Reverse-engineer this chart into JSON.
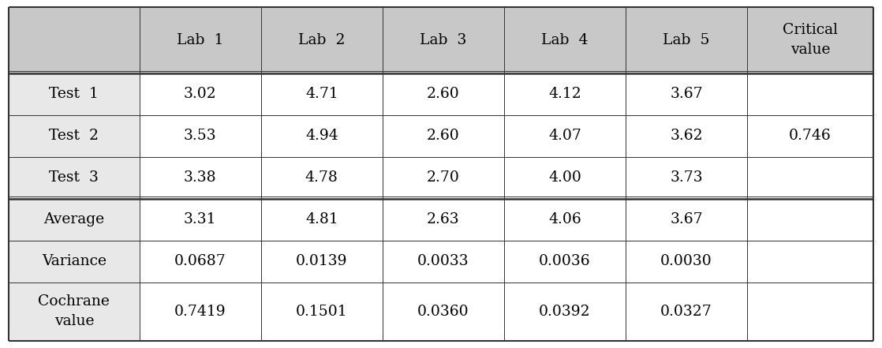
{
  "col_headers": [
    "",
    "Lab  1",
    "Lab  2",
    "Lab  3",
    "Lab  4",
    "Lab  5",
    "Critical\nvalue"
  ],
  "rows": [
    [
      "Test  1",
      "3.02",
      "4.71",
      "2.60",
      "4.12",
      "3.67",
      ""
    ],
    [
      "Test  2",
      "3.53",
      "4.94",
      "2.60",
      "4.07",
      "3.62",
      "0.746"
    ],
    [
      "Test  3",
      "3.38",
      "4.78",
      "2.70",
      "4.00",
      "3.73",
      ""
    ],
    [
      "Average",
      "3.31",
      "4.81",
      "2.63",
      "4.06",
      "3.67",
      ""
    ],
    [
      "Variance",
      "0.0687",
      "0.0139",
      "0.0033",
      "0.0036",
      "0.0030",
      ""
    ],
    [
      "Cochrane\nvalue",
      "0.7419",
      "0.1501",
      "0.0360",
      "0.0392",
      "0.0327",
      ""
    ]
  ],
  "header_bg": "#c8c8c8",
  "row_label_bg": "#e8e8e8",
  "white": "#ffffff",
  "figure_bg": "#ffffff",
  "border_color": "#333333",
  "text_color": "#000000",
  "font_size": 13.5,
  "figsize": [
    11.18,
    4.41
  ],
  "dpi": 100,
  "col_widths_raw": [
    1.45,
    1.35,
    1.35,
    1.35,
    1.35,
    1.35,
    1.4
  ],
  "row_heights_raw": [
    1.75,
    1.1,
    1.1,
    1.1,
    1.1,
    1.1,
    1.55
  ]
}
